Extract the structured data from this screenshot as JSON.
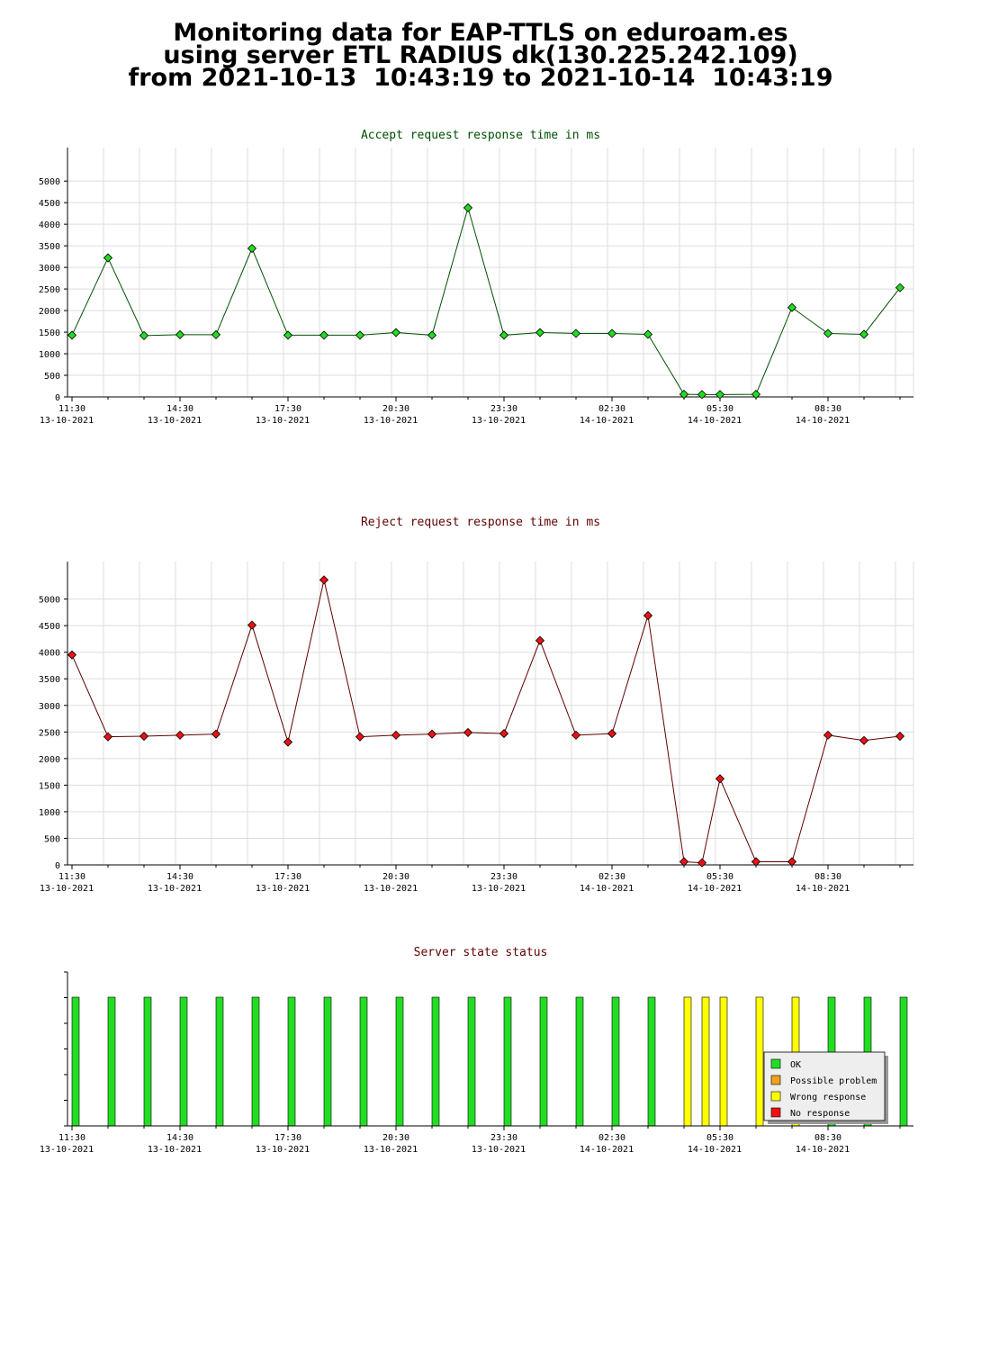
{
  "page": {
    "title_lines": [
      "Monitoring data for EAP-TTLS on eduroam.es",
      "using server ETL RADIUS dk(130.225.242.109)",
      "from 2021-10-13  10:43:19 to 2021-10-14  10:43:19"
    ]
  },
  "colors": {
    "accept_line": "#005000",
    "accept_marker": "#22dd22",
    "reject_line": "#600000",
    "reject_marker": "#ee1111",
    "ok": "#22dd22",
    "possible_problem": "#f0a020",
    "wrong_response": "#ffff00",
    "no_response": "#ee1111",
    "title_green": "#005000",
    "title_red": "#600000",
    "grid": "#dddddd"
  },
  "x_ticks": [
    {
      "time": "11:30",
      "date": "13-10-2021"
    },
    {
      "time": "14:30",
      "date": "13-10-2021"
    },
    {
      "time": "17:30",
      "date": "13-10-2021"
    },
    {
      "time": "20:30",
      "date": "13-10-2021"
    },
    {
      "time": "23:30",
      "date": "13-10-2021"
    },
    {
      "time": "02:30",
      "date": "14-10-2021"
    },
    {
      "time": "05:30",
      "date": "14-10-2021"
    },
    {
      "time": "08:30",
      "date": "14-10-2021"
    }
  ],
  "chart_data": [
    {
      "type": "line",
      "title": "Accept request response time in ms",
      "x_start": "2021-10-13 11:30",
      "x": [
        "2021-10-13 11:30",
        "2021-10-13 12:30",
        "2021-10-13 13:30",
        "2021-10-13 14:30",
        "2021-10-13 15:30",
        "2021-10-13 16:30",
        "2021-10-13 17:30",
        "2021-10-13 18:30",
        "2021-10-13 19:30",
        "2021-10-13 20:30",
        "2021-10-13 21:30",
        "2021-10-13 22:30",
        "2021-10-13 23:30",
        "2021-10-14 00:30",
        "2021-10-14 01:30",
        "2021-10-14 02:30",
        "2021-10-14 03:30",
        "2021-10-14 04:30",
        "2021-10-14 05:00",
        "2021-10-14 05:30",
        "2021-10-14 06:30",
        "2021-10-14 07:30",
        "2021-10-14 08:30",
        "2021-10-14 09:30",
        "2021-10-14 10:30"
      ],
      "y": [
        1430,
        3220,
        1420,
        1440,
        1440,
        3440,
        1430,
        1430,
        1430,
        1490,
        1430,
        4380,
        1430,
        1490,
        1470,
        1470,
        1450,
        60,
        55,
        55,
        60,
        2070,
        1470,
        1450,
        2530
      ],
      "ylim": [
        0,
        5400
      ],
      "yticks": [
        0,
        500,
        1000,
        1500,
        2000,
        2500,
        3000,
        3500,
        4000,
        4500,
        5000
      ],
      "grid": true
    },
    {
      "type": "line",
      "title": "Reject request response time in ms",
      "x_start": "2021-10-13 11:30",
      "x": [
        "2021-10-13 11:30",
        "2021-10-13 12:30",
        "2021-10-13 13:30",
        "2021-10-13 14:30",
        "2021-10-13 15:30",
        "2021-10-13 16:30",
        "2021-10-13 17:30",
        "2021-10-13 18:30",
        "2021-10-13 19:30",
        "2021-10-13 20:30",
        "2021-10-13 21:30",
        "2021-10-13 22:30",
        "2021-10-13 23:30",
        "2021-10-14 00:30",
        "2021-10-14 01:30",
        "2021-10-14 02:30",
        "2021-10-14 03:30",
        "2021-10-14 04:30",
        "2021-10-14 05:00",
        "2021-10-14 05:30",
        "2021-10-14 06:30",
        "2021-10-14 07:30",
        "2021-10-14 08:30",
        "2021-10-14 09:30",
        "2021-10-14 10:30"
      ],
      "y": [
        3950,
        2410,
        2420,
        2440,
        2460,
        4510,
        2310,
        5360,
        2410,
        2440,
        2460,
        2490,
        2470,
        4220,
        2440,
        2470,
        4690,
        60,
        40,
        1620,
        60,
        60,
        2440,
        2340,
        2420
      ],
      "ylim": [
        0,
        5400
      ],
      "yticks": [
        0,
        500,
        1000,
        1500,
        2000,
        2500,
        3000,
        3500,
        4000,
        4500,
        5000
      ],
      "grid": true
    },
    {
      "type": "bar",
      "title": "Server state status",
      "x_start": "2021-10-13 11:30",
      "x": [
        "2021-10-13 11:30",
        "2021-10-13 12:30",
        "2021-10-13 13:30",
        "2021-10-13 14:30",
        "2021-10-13 15:30",
        "2021-10-13 16:30",
        "2021-10-13 17:30",
        "2021-10-13 18:30",
        "2021-10-13 19:30",
        "2021-10-13 20:30",
        "2021-10-13 21:30",
        "2021-10-13 22:30",
        "2021-10-13 23:30",
        "2021-10-14 00:30",
        "2021-10-14 01:30",
        "2021-10-14 02:30",
        "2021-10-14 03:30",
        "2021-10-14 04:30",
        "2021-10-14 05:00",
        "2021-10-14 05:30",
        "2021-10-14 06:30",
        "2021-10-14 07:30",
        "2021-10-14 08:30",
        "2021-10-14 09:30",
        "2021-10-14 10:30"
      ],
      "states": [
        "OK",
        "OK",
        "OK",
        "OK",
        "OK",
        "OK",
        "OK",
        "OK",
        "OK",
        "OK",
        "OK",
        "OK",
        "OK",
        "OK",
        "OK",
        "OK",
        "OK",
        "Wrong response",
        "Wrong response",
        "Wrong response",
        "Wrong response",
        "Wrong response",
        "OK",
        "OK",
        "OK"
      ],
      "legend": [
        "OK",
        "Possible problem",
        "Wrong response",
        "No response"
      ],
      "legend_position": "bottom-right"
    }
  ]
}
